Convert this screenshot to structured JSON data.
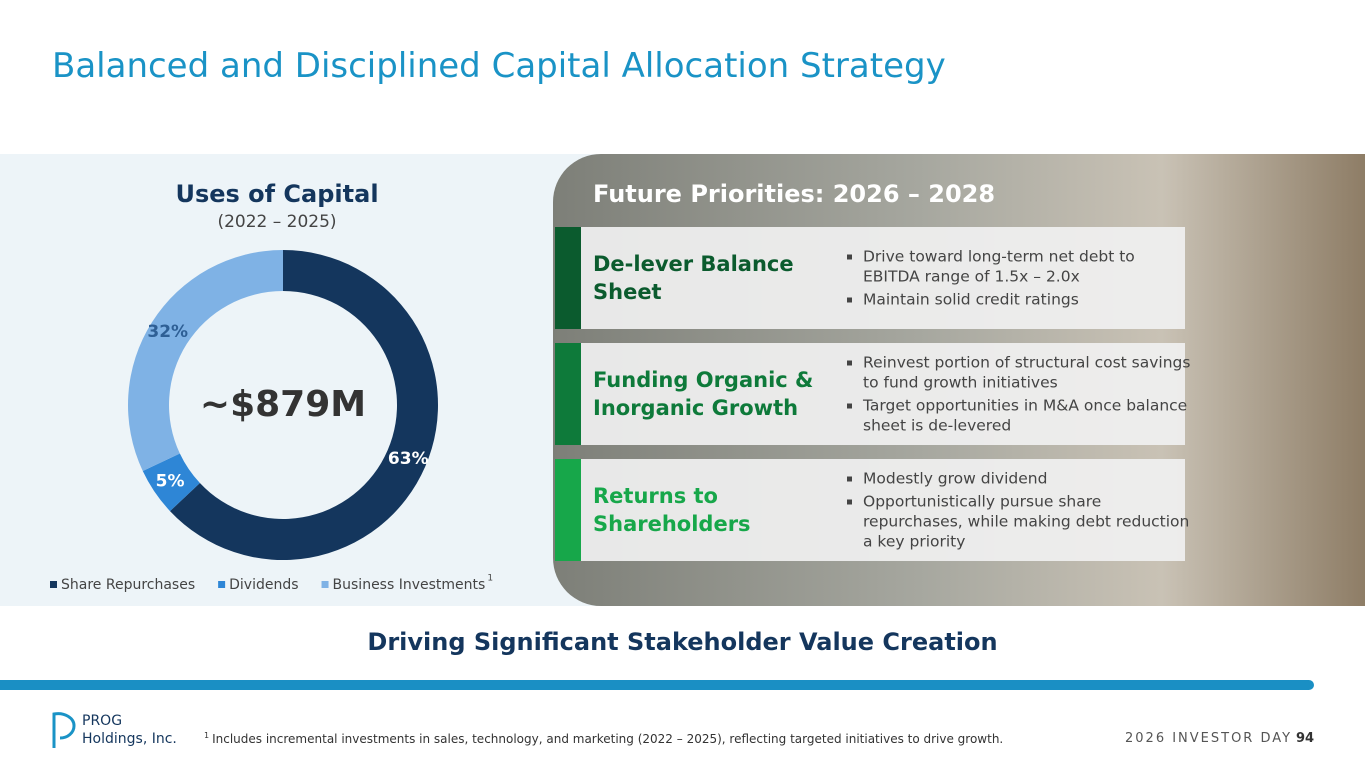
{
  "title": "Balanced and Disciplined Capital Allocation Strategy",
  "chart_data": {
    "type": "pie",
    "title": "Uses of Capital",
    "subtitle": "(2022 – 2025)",
    "center_label": "~$879M",
    "categories": [
      "Share Repurchases",
      "Dividends",
      "Business Investments"
    ],
    "values": [
      63,
      5,
      32
    ],
    "value_labels": [
      "63%",
      "5%",
      "32%"
    ],
    "colors": [
      "#14365d",
      "#2e86d6",
      "#7fb2e5"
    ],
    "legend_note": "1"
  },
  "priorities": {
    "title": "Future Priorities: 2026 – 2028",
    "items": [
      {
        "heading": "De-lever Balance Sheet",
        "color": "#0b5b2e",
        "bullets": [
          "Drive toward long-term net debt to EBITDA range of 1.5x – 2.0x",
          "Maintain solid credit ratings"
        ]
      },
      {
        "heading": "Funding Organic & Inorganic Growth",
        "color": "#0e7a3a",
        "bullets": [
          "Reinvest portion of structural cost savings to fund growth initiatives",
          "Target opportunities in M&A once balance sheet is de-levered"
        ]
      },
      {
        "heading": "Returns to Shareholders",
        "color": "#17a74a",
        "bullets": [
          "Modestly grow dividend",
          "Opportunistically pursue share repurchases, while making debt reduction a key priority"
        ]
      }
    ]
  },
  "tagline": "Driving Significant Stakeholder Value Creation",
  "footer": {
    "logo_line1": "PROG",
    "logo_line2": "Holdings, Inc.",
    "footnote_marker": "1",
    "footnote": "Includes incremental investments in sales, technology, and marketing (2022 – 2025), reflecting targeted initiatives to drive growth.",
    "event": "2026 INVESTOR DAY",
    "page": "94"
  }
}
